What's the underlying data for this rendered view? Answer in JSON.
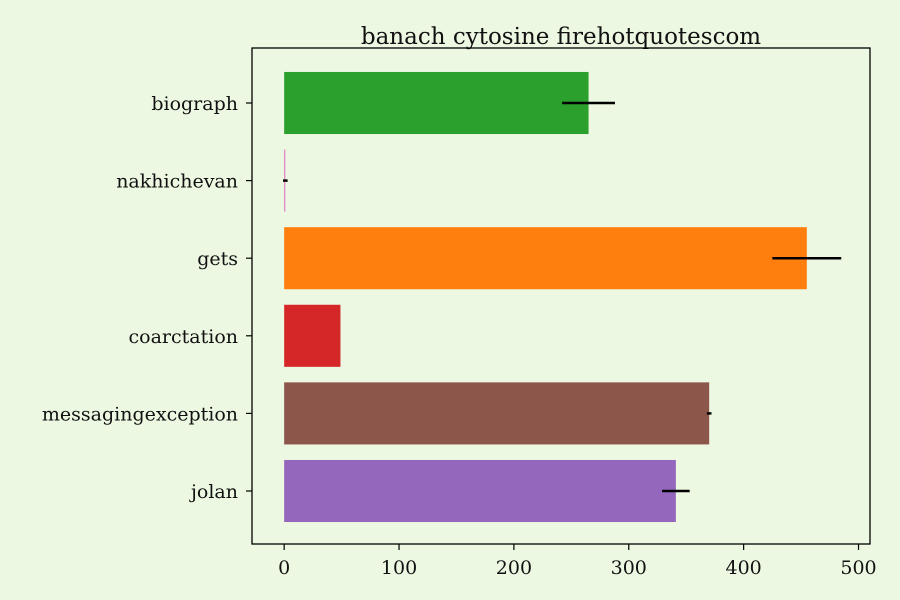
{
  "chart_data": {
    "type": "bar",
    "orientation": "horizontal",
    "title": "banach cytosine firehotquotescom",
    "xlabel": "",
    "ylabel": "",
    "xlim": [
      -28,
      510
    ],
    "xticks": [
      0,
      100,
      200,
      300,
      400,
      500
    ],
    "grid": false,
    "categories": [
      "biograph",
      "nakhichevan",
      "gets",
      "coarctation",
      "messagingexception",
      "jolan"
    ],
    "values": [
      265,
      1,
      455,
      49,
      370,
      341
    ],
    "errors": [
      23,
      2,
      30,
      0,
      2,
      12
    ],
    "colors": [
      "#2ca02c",
      "#e377c2",
      "#ff7f0e",
      "#d62728",
      "#8c564b",
      "#9467bd"
    ]
  }
}
